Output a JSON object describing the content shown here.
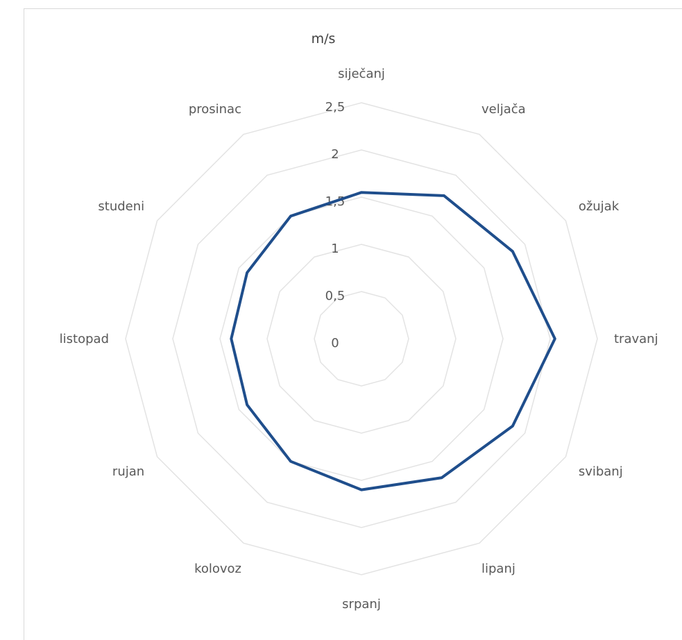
{
  "chart_data": {
    "type": "radar",
    "unit_label": "m/s",
    "categories": [
      "siječanj",
      "veljača",
      "ožujak",
      "travanj",
      "svibanj",
      "lipanj",
      "srpanj",
      "kolovoz",
      "rujan",
      "listopad",
      "studeni",
      "prosinac"
    ],
    "ticks": [
      "0",
      "0,5",
      "1",
      "1,5",
      "2",
      "2,5"
    ],
    "rlim": [
      0,
      2.5
    ],
    "grid": true,
    "series": [
      {
        "values": [
          1.55,
          1.75,
          1.85,
          2.05,
          1.85,
          1.7,
          1.6,
          1.5,
          1.4,
          1.38,
          1.4,
          1.5
        ],
        "color": "#1f4e8c"
      }
    ]
  }
}
